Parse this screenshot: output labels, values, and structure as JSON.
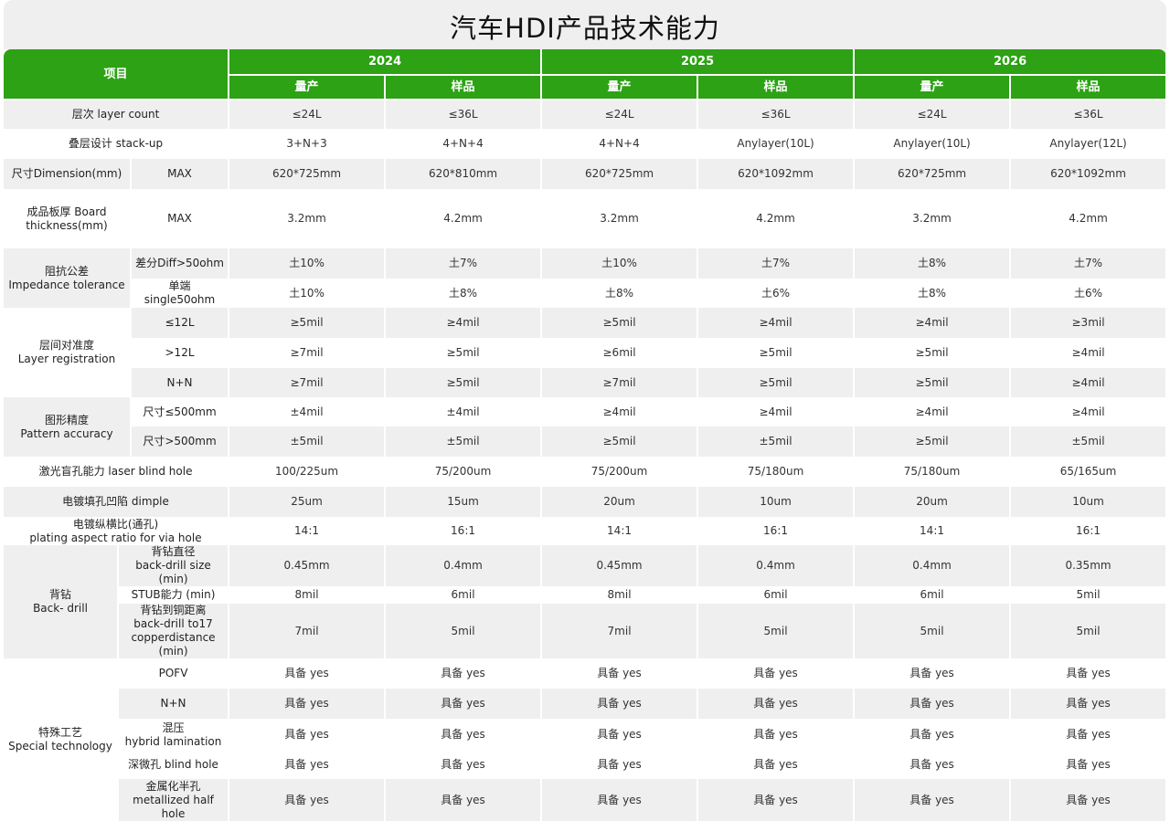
{
  "title": "汽车HDI产品技术能力",
  "header": {
    "item_label": "项目",
    "years": [
      "2024",
      "2025",
      "2026"
    ],
    "sub_labels": [
      "量产",
      "样品",
      "量产",
      "样品",
      "量产",
      "样品"
    ]
  },
  "groups": [
    {
      "label": "层次  layer count",
      "rows": [
        {
          "label": "",
          "values": [
            "≤24L",
            "≤36L",
            "≤24L",
            "≤36L",
            "≤24L",
            "≤36L"
          ]
        }
      ]
    },
    {
      "label": "叠层设计 stack-up",
      "rows": [
        {
          "label": "",
          "values": [
            "3+N+3",
            "4+N+4",
            "4+N+4",
            "Anylayer(10L)",
            "Anylayer(10L)",
            "Anylayer(12L)"
          ]
        }
      ]
    },
    {
      "label": "尺寸Dimension(mm)",
      "rows": [
        {
          "label": "MAX",
          "values": [
            "620*725mm",
            "620*810mm",
            "620*725mm",
            "620*1092mm",
            "620*725mm",
            "620*1092mm"
          ]
        }
      ]
    },
    {
      "label": "成品板厚 Board thickness(mm)",
      "rows": [
        {
          "label": "MAX",
          "values": [
            "3.2mm",
            "4.2mm",
            "3.2mm",
            "4.2mm",
            "3.2mm",
            "4.2mm"
          ]
        }
      ]
    },
    {
      "label": "阻抗公差\nImpedance tolerance",
      "rows": [
        {
          "label": "差分Diff>50ohm",
          "values": [
            "土10%",
            "土7%",
            "土10%",
            "土7%",
            "土8%",
            "土7%"
          ]
        },
        {
          "label": "单端 single50ohm",
          "values": [
            "土10%",
            "土8%",
            "土8%",
            "土6%",
            "土8%",
            "土6%"
          ]
        }
      ]
    },
    {
      "label": "层间对准度\nLayer registration",
      "rows": [
        {
          "label": "≤12L",
          "values": [
            "≥5mil",
            "≥4mil",
            "≥5mil",
            "≥4mil",
            "≥4mil",
            "≥3mil"
          ]
        },
        {
          "label": ">12L",
          "values": [
            "≥7mil",
            "≥5mil",
            "≥6mil",
            "≥5mil",
            "≥5mil",
            "≥4mil"
          ]
        },
        {
          "label": "N+N",
          "values": [
            "≥7mil",
            "≥5mil",
            "≥7mil",
            "≥5mil",
            "≥5mil",
            "≥4mil"
          ]
        }
      ]
    },
    {
      "label": "图形精度\nPattern accuracy",
      "rows": [
        {
          "label": "尺寸≤500mm",
          "values": [
            "±4mil",
            "±4mil",
            "≥4mil",
            "≥4mil",
            "≥4mil",
            "≥4mil"
          ]
        },
        {
          "label": "尺寸>500mm",
          "values": [
            "±5mil",
            "±5mil",
            "≥5mil",
            "±5mil",
            "≥5mil",
            "±5mil"
          ]
        }
      ]
    },
    {
      "label": "激光盲孔能力 laser blind hole",
      "rows": [
        {
          "label": "",
          "values": [
            "100/225um",
            "75/200um",
            "75/200um",
            "75/180um",
            "75/180um",
            "65/165um"
          ]
        }
      ]
    },
    {
      "label": "电镀填孔凹陷 dimple",
      "rows": [
        {
          "label": "",
          "values": [
            "25um",
            "15um",
            "20um",
            "10um",
            "20um",
            "10um"
          ]
        }
      ]
    },
    {
      "label": "电镀纵横比(通孔)\nplating aspect ratio for via hole",
      "rows": [
        {
          "label": "",
          "values": [
            "14:1",
            "16:1",
            "14:1",
            "16:1",
            "14:1",
            "16:1"
          ]
        }
      ]
    },
    {
      "label": "背钻\nBack- drill",
      "rows": [
        {
          "label": "背钻直径\nback-drill size (min)",
          "values": [
            "0.45mm",
            "0.4mm",
            "0.45mm",
            "0.4mm",
            "0.4mm",
            "0.35mm"
          ]
        },
        {
          "label": "STUB能力 (min)",
          "values": [
            "8mil",
            "6mil",
            "8mil",
            "6mil",
            "6mil",
            "5mil"
          ]
        },
        {
          "label": "背钻到铜距离\nback-drill to17\ncopperdistance (min)",
          "values": [
            "7mil",
            "5mil",
            "7mil",
            "5mil",
            "5mil",
            "5mil"
          ]
        }
      ]
    },
    {
      "label": "特殊工艺\nSpecial  technology",
      "rows": [
        {
          "label": "POFV",
          "values": [
            "具备 yes",
            "具备 yes",
            "具备 yes",
            "具备 yes",
            "具备 yes",
            "具备 yes"
          ]
        },
        {
          "label": "N+N",
          "values": [
            "具备 yes",
            "具备 yes",
            "具备 yes",
            "具备 yes",
            "具备 yes",
            "具备 yes"
          ]
        },
        {
          "label": "混压\nhybrid lamination",
          "values": [
            "具备 yes",
            "具备 yes",
            "具备 yes",
            "具备 yes",
            "具备 yes",
            "具备 yes"
          ]
        },
        {
          "label": "深微孔 blind hole",
          "values": [
            "具备 yes",
            "具备 yes",
            "具备 yes",
            "具备 yes",
            "具备 yes",
            "具备 yes"
          ]
        },
        {
          "label": "金属化半孔\nmetallized half hole",
          "values": [
            "具备 yes",
            "具备 yes",
            "具备 yes",
            "具备 yes",
            "具备 yes",
            "具备 yes"
          ]
        }
      ]
    }
  ]
}
